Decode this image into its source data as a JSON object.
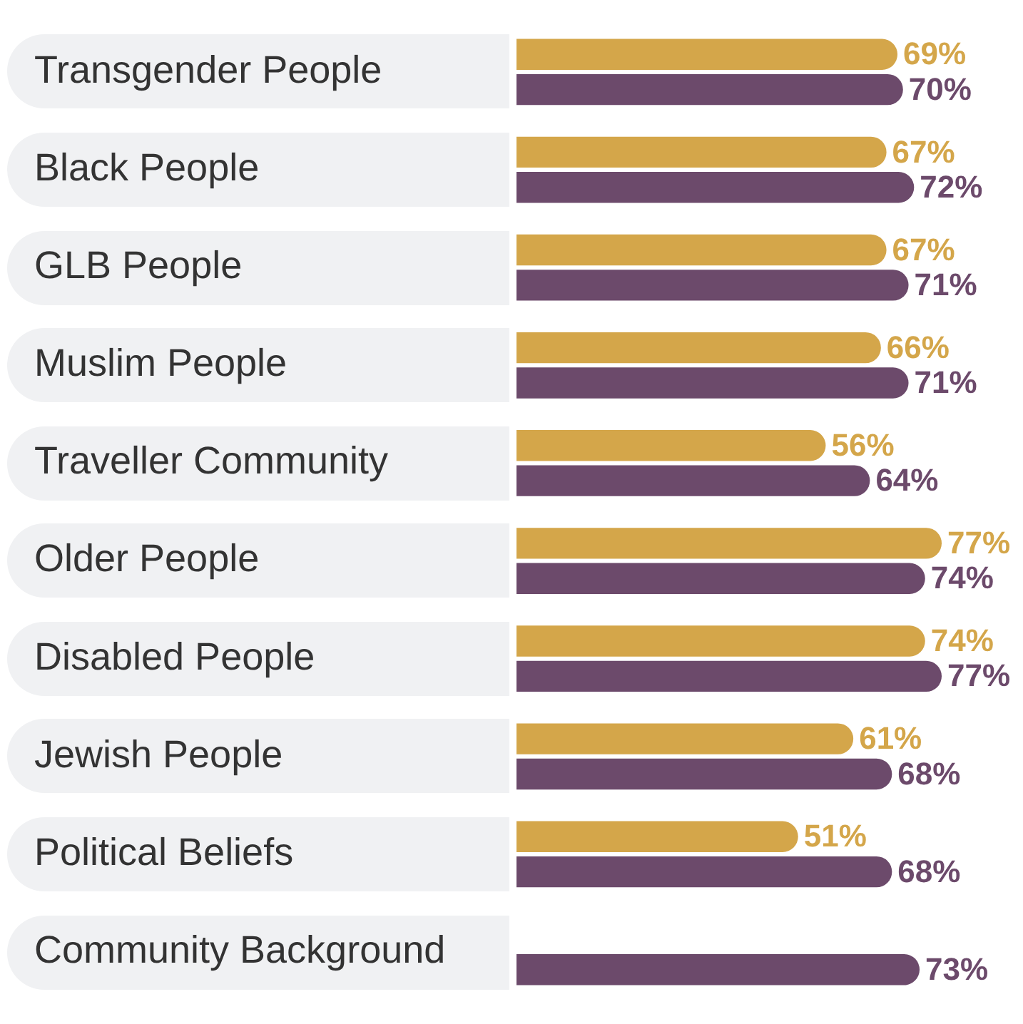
{
  "chart_data": {
    "type": "bar",
    "orientation": "horizontal",
    "categories": [
      "Transgender People",
      "Black People",
      "GLB People",
      "Muslim People",
      "Traveller Community",
      "Older People",
      "Disabled People",
      "Jewish People",
      "Political Beliefs",
      "Community Background"
    ],
    "series": [
      {
        "color": "#d4a64a",
        "values": [
          69,
          67,
          67,
          66,
          56,
          77,
          74,
          61,
          51,
          null
        ],
        "value_labels": [
          "69%",
          "67%",
          "67%",
          "66%",
          "56%",
          "77%",
          "74%",
          "61%",
          "51%",
          null
        ]
      },
      {
        "color": "#6c4a6b",
        "values": [
          70,
          72,
          71,
          71,
          64,
          74,
          77,
          68,
          68,
          73
        ],
        "value_labels": [
          "70%",
          "72%",
          "71%",
          "71%",
          "64%",
          "74%",
          "77%",
          "68%",
          "68%",
          "73%"
        ]
      }
    ],
    "grid": false,
    "legend": false
  }
}
